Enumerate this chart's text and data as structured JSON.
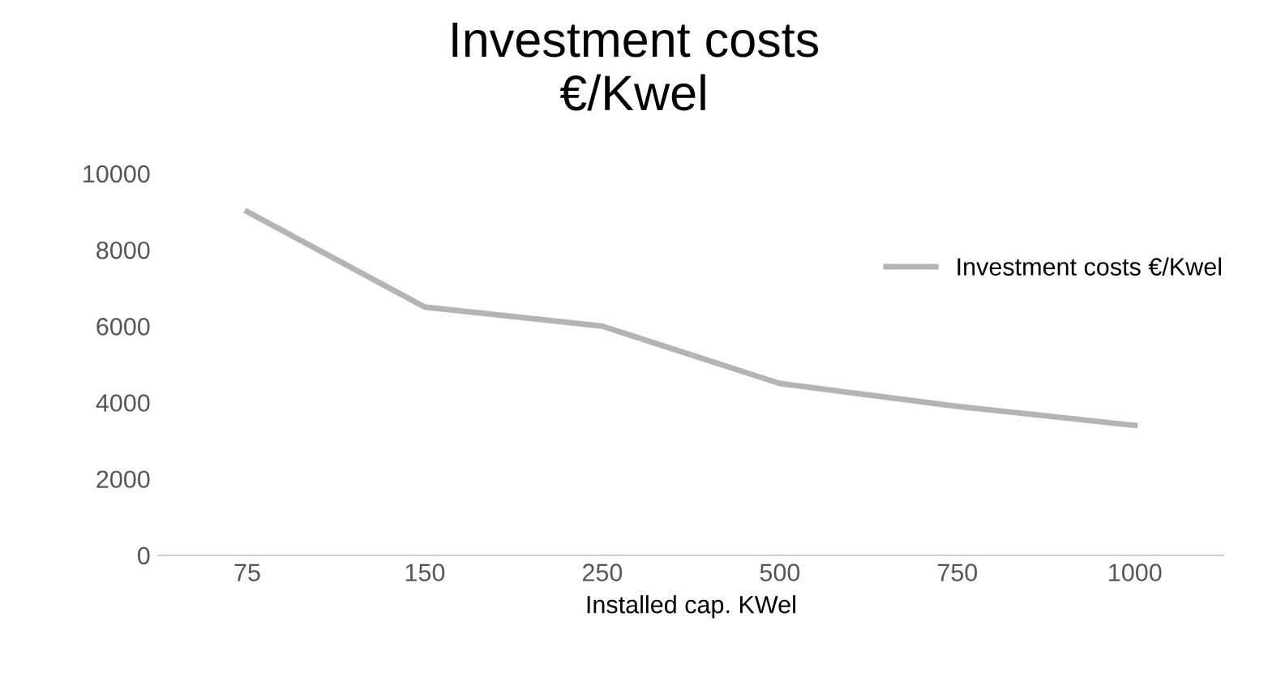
{
  "chart_data": {
    "type": "line",
    "title": "Investment costs\n€/Kwel",
    "xlabel": "Installed cap. KWel",
    "categories": [
      "75",
      "150",
      "250",
      "500",
      "750",
      "1000"
    ],
    "series": [
      {
        "name": "Investment costs €/Kwel",
        "color": "#b4b4b4",
        "values": [
          9000,
          6500,
          6000,
          4500,
          3900,
          3400
        ]
      }
    ],
    "ylim": [
      0,
      10000
    ],
    "yticks": [
      0,
      2000,
      4000,
      6000,
      8000,
      10000
    ],
    "grid": false,
    "legend": "right",
    "marker": "none"
  }
}
